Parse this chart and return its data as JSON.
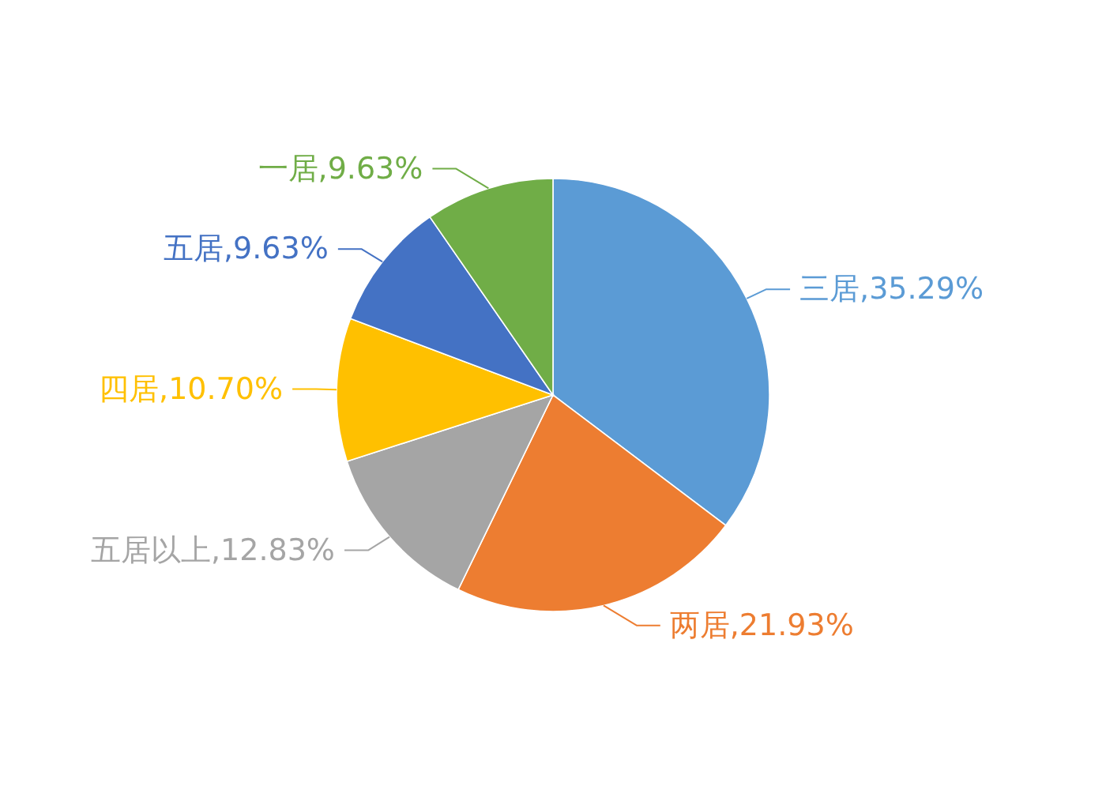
{
  "chart_data": {
    "type": "pie",
    "categories": [
      "三居",
      "两居",
      "五居以上",
      "四居",
      "五居",
      "一居"
    ],
    "values": [
      35.29,
      21.93,
      12.83,
      10.7,
      9.63,
      9.63
    ],
    "colors": [
      "#5b9bd5",
      "#ed7d31",
      "#a5a5a5",
      "#ffc000",
      "#4472c4",
      "#70ad47"
    ],
    "value_labels": [
      "35.29%",
      "21.93%",
      "12.83%",
      "10.70%",
      "9.63%",
      "9.63%"
    ]
  }
}
